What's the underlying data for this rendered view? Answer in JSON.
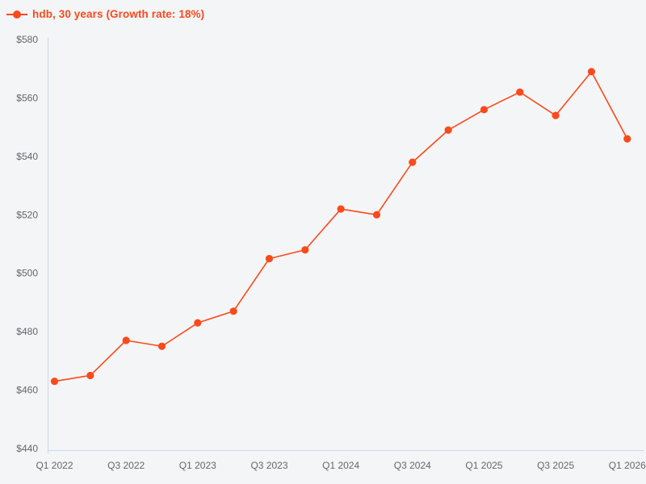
{
  "chart_data": {
    "type": "line",
    "title": "",
    "xlabel": "",
    "ylabel": "",
    "categories": [
      "Q1 2022",
      "Q2 2022",
      "Q3 2022",
      "Q4 2022",
      "Q1 2023",
      "Q2 2023",
      "Q3 2023",
      "Q4 2023",
      "Q1 2024",
      "Q2 2024",
      "Q3 2024",
      "Q4 2024",
      "Q1 2025",
      "Q2 2025",
      "Q3 2025",
      "Q4 2025",
      "Q1 2026"
    ],
    "series": [
      {
        "name": "hdb, 30 years (Growth rate: 18%)",
        "color": "#fa4a1c",
        "values": [
          463,
          465,
          477,
          475,
          483,
          487,
          505,
          508,
          522,
          520,
          538,
          549,
          556,
          562,
          554,
          569,
          546
        ]
      }
    ],
    "x_tick_labels": [
      "Q1 2022",
      "Q3 2022",
      "Q1 2023",
      "Q3 2023",
      "Q1 2024",
      "Q3 2024",
      "Q1 2025",
      "Q3 2025",
      "Q1 2026"
    ],
    "y_ticks": [
      440,
      460,
      480,
      500,
      520,
      540,
      560,
      580
    ],
    "y_tick_prefix": "$",
    "ylim": [
      440,
      580
    ],
    "grid": false,
    "legend_position": "top-left",
    "marker": "circle",
    "colors": {
      "background": "#f4f5f6",
      "axis": "#ccd6eb",
      "tick_label": "#62666c"
    }
  }
}
